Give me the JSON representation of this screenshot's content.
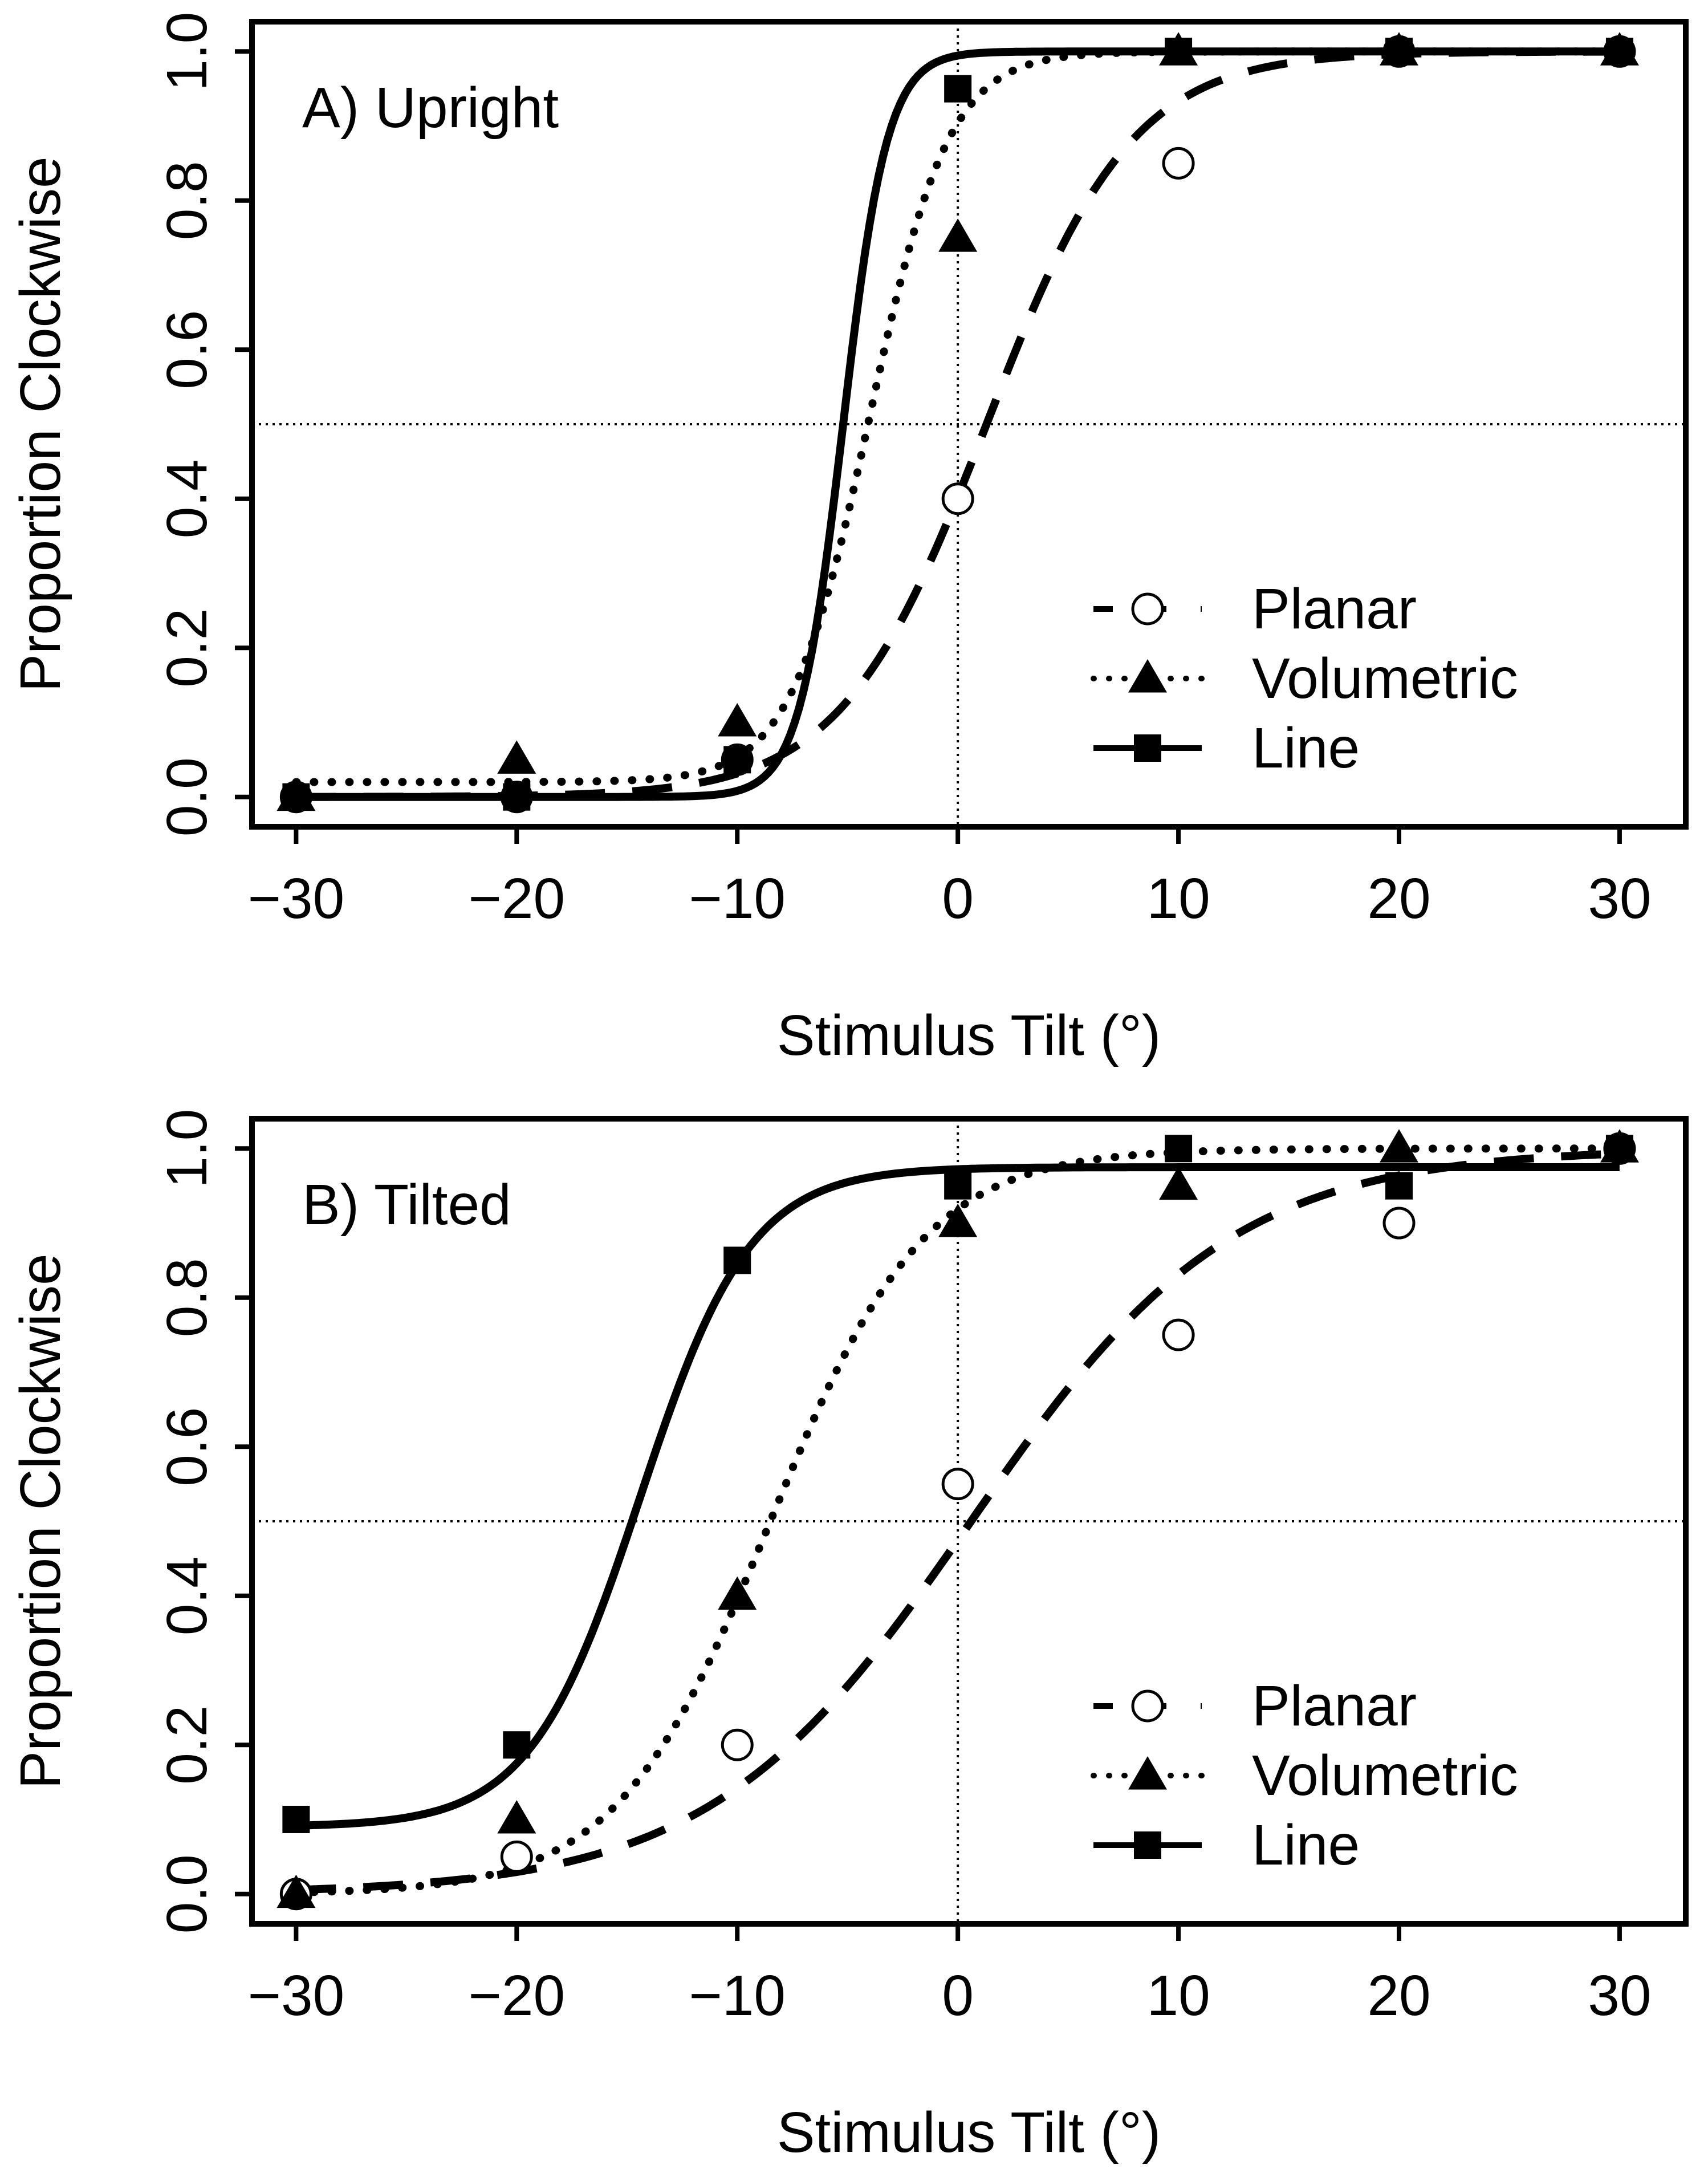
{
  "chart_data": [
    {
      "type": "line",
      "title": "A) Upright",
      "xlabel": "Stimulus Tilt (°)",
      "ylabel": "Proportion Clockwise",
      "xlim": [
        -32,
        33
      ],
      "ylim": [
        -0.04,
        1.04
      ],
      "xticks": [
        -30,
        -20,
        -10,
        0,
        10,
        20,
        30
      ],
      "yticks": [
        0.0,
        0.2,
        0.4,
        0.6,
        0.8,
        1.0
      ],
      "x_tick_labels": [
        "−30",
        "−20",
        "−10",
        "0",
        "10",
        "20",
        "30"
      ],
      "y_tick_labels": [
        "0.0",
        "0.2",
        "0.4",
        "0.6",
        "0.8",
        "1.0"
      ],
      "reference_lines": {
        "x": 0,
        "y": 0.5
      },
      "legend_position": "bottom-right",
      "x": [
        -30,
        -20,
        -10,
        0,
        10,
        20,
        30
      ],
      "series": [
        {
          "name": "Planar",
          "marker": "open-circle",
          "line": "dashed",
          "values": [
            0.0,
            0.0,
            0.05,
            0.4,
            0.85,
            1.0,
            1.0
          ],
          "fit": {
            "mu": 1.3,
            "s": 3.3,
            "lo": 0.0,
            "hi": 1.0
          }
        },
        {
          "name": "Volumetric",
          "marker": "filled-triangle",
          "line": "dotted",
          "values": [
            0.0,
            0.05,
            0.1,
            0.75,
            1.0,
            1.0,
            1.0
          ],
          "fit": {
            "mu": -4.0,
            "s": 1.8,
            "lo": 0.02,
            "hi": 1.0
          }
        },
        {
          "name": "Line",
          "marker": "filled-square",
          "line": "solid",
          "values": [
            0.0,
            0.0,
            0.05,
            0.95,
            1.0,
            1.0,
            1.0
          ],
          "fit": {
            "mu": -5.2,
            "s": 1.0,
            "lo": 0.0,
            "hi": 1.0
          }
        }
      ]
    },
    {
      "type": "line",
      "title": "B) Tilted",
      "xlabel": "Stimulus Tilt (°)",
      "ylabel": "Proportion Clockwise",
      "xlim": [
        -32,
        33
      ],
      "ylim": [
        -0.04,
        1.04
      ],
      "xticks": [
        -30,
        -20,
        -10,
        0,
        10,
        20,
        30
      ],
      "yticks": [
        0.0,
        0.2,
        0.4,
        0.6,
        0.8,
        1.0
      ],
      "x_tick_labels": [
        "−30",
        "−20",
        "−10",
        "0",
        "10",
        "20",
        "30"
      ],
      "y_tick_labels": [
        "0.0",
        "0.2",
        "0.4",
        "0.6",
        "0.8",
        "1.0"
      ],
      "reference_lines": {
        "x": 0,
        "y": 0.5
      },
      "legend_position": "bottom-right",
      "x": [
        -30,
        -20,
        -10,
        0,
        10,
        20,
        30
      ],
      "series": [
        {
          "name": "Planar",
          "marker": "open-circle",
          "line": "dashed",
          "values": [
            0.0,
            0.05,
            0.2,
            0.55,
            0.75,
            0.9,
            1.0
          ],
          "fit": {
            "mu": 0.6,
            "s": 5.9,
            "lo": 0.0,
            "hi": 1.0
          }
        },
        {
          "name": "Volumetric",
          "marker": "filled-triangle",
          "line": "dotted",
          "values": [
            0.0,
            0.1,
            0.4,
            0.9,
            0.95,
            1.0,
            1.0
          ],
          "fit": {
            "mu": -8.5,
            "s": 3.5,
            "lo": 0.0,
            "hi": 1.0
          }
        },
        {
          "name": "Line",
          "marker": "filled-square",
          "line": "solid",
          "values": [
            0.1,
            0.2,
            0.85,
            0.95,
            1.0,
            0.95,
            1.0
          ],
          "fit": {
            "mu": -14.4,
            "s": 2.5,
            "lo": 0.09,
            "hi": 0.975
          }
        }
      ]
    }
  ]
}
